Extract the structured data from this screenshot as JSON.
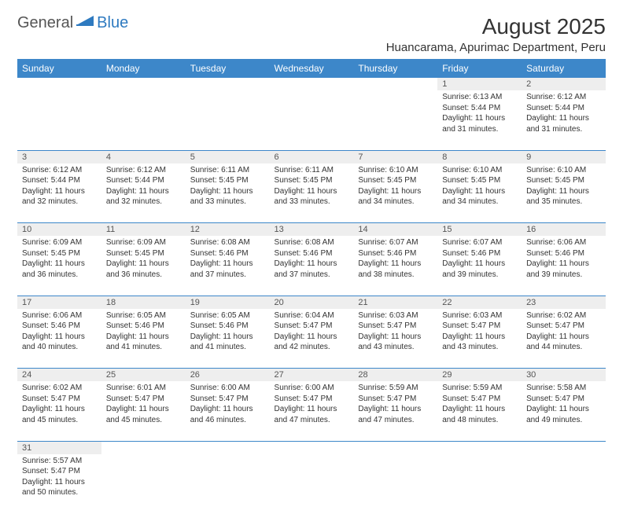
{
  "logo": {
    "word1": "General",
    "word2": "Blue"
  },
  "title": "August 2025",
  "location": "Huancarama, Apurimac Department, Peru",
  "colors": {
    "header_bg": "#3d87c9",
    "header_fg": "#ffffff",
    "daynum_bg": "#eeeeee",
    "row_border": "#3d87c9",
    "logo_blue": "#2e7ac0",
    "text": "#333333"
  },
  "day_names": [
    "Sunday",
    "Monday",
    "Tuesday",
    "Wednesday",
    "Thursday",
    "Friday",
    "Saturday"
  ],
  "weeks": [
    [
      null,
      null,
      null,
      null,
      null,
      {
        "n": "1",
        "sr": "6:13 AM",
        "ss": "5:44 PM",
        "dl": "11 hours and 31 minutes."
      },
      {
        "n": "2",
        "sr": "6:12 AM",
        "ss": "5:44 PM",
        "dl": "11 hours and 31 minutes."
      }
    ],
    [
      {
        "n": "3",
        "sr": "6:12 AM",
        "ss": "5:44 PM",
        "dl": "11 hours and 32 minutes."
      },
      {
        "n": "4",
        "sr": "6:12 AM",
        "ss": "5:44 PM",
        "dl": "11 hours and 32 minutes."
      },
      {
        "n": "5",
        "sr": "6:11 AM",
        "ss": "5:45 PM",
        "dl": "11 hours and 33 minutes."
      },
      {
        "n": "6",
        "sr": "6:11 AM",
        "ss": "5:45 PM",
        "dl": "11 hours and 33 minutes."
      },
      {
        "n": "7",
        "sr": "6:10 AM",
        "ss": "5:45 PM",
        "dl": "11 hours and 34 minutes."
      },
      {
        "n": "8",
        "sr": "6:10 AM",
        "ss": "5:45 PM",
        "dl": "11 hours and 34 minutes."
      },
      {
        "n": "9",
        "sr": "6:10 AM",
        "ss": "5:45 PM",
        "dl": "11 hours and 35 minutes."
      }
    ],
    [
      {
        "n": "10",
        "sr": "6:09 AM",
        "ss": "5:45 PM",
        "dl": "11 hours and 36 minutes."
      },
      {
        "n": "11",
        "sr": "6:09 AM",
        "ss": "5:45 PM",
        "dl": "11 hours and 36 minutes."
      },
      {
        "n": "12",
        "sr": "6:08 AM",
        "ss": "5:46 PM",
        "dl": "11 hours and 37 minutes."
      },
      {
        "n": "13",
        "sr": "6:08 AM",
        "ss": "5:46 PM",
        "dl": "11 hours and 37 minutes."
      },
      {
        "n": "14",
        "sr": "6:07 AM",
        "ss": "5:46 PM",
        "dl": "11 hours and 38 minutes."
      },
      {
        "n": "15",
        "sr": "6:07 AM",
        "ss": "5:46 PM",
        "dl": "11 hours and 39 minutes."
      },
      {
        "n": "16",
        "sr": "6:06 AM",
        "ss": "5:46 PM",
        "dl": "11 hours and 39 minutes."
      }
    ],
    [
      {
        "n": "17",
        "sr": "6:06 AM",
        "ss": "5:46 PM",
        "dl": "11 hours and 40 minutes."
      },
      {
        "n": "18",
        "sr": "6:05 AM",
        "ss": "5:46 PM",
        "dl": "11 hours and 41 minutes."
      },
      {
        "n": "19",
        "sr": "6:05 AM",
        "ss": "5:46 PM",
        "dl": "11 hours and 41 minutes."
      },
      {
        "n": "20",
        "sr": "6:04 AM",
        "ss": "5:47 PM",
        "dl": "11 hours and 42 minutes."
      },
      {
        "n": "21",
        "sr": "6:03 AM",
        "ss": "5:47 PM",
        "dl": "11 hours and 43 minutes."
      },
      {
        "n": "22",
        "sr": "6:03 AM",
        "ss": "5:47 PM",
        "dl": "11 hours and 43 minutes."
      },
      {
        "n": "23",
        "sr": "6:02 AM",
        "ss": "5:47 PM",
        "dl": "11 hours and 44 minutes."
      }
    ],
    [
      {
        "n": "24",
        "sr": "6:02 AM",
        "ss": "5:47 PM",
        "dl": "11 hours and 45 minutes."
      },
      {
        "n": "25",
        "sr": "6:01 AM",
        "ss": "5:47 PM",
        "dl": "11 hours and 45 minutes."
      },
      {
        "n": "26",
        "sr": "6:00 AM",
        "ss": "5:47 PM",
        "dl": "11 hours and 46 minutes."
      },
      {
        "n": "27",
        "sr": "6:00 AM",
        "ss": "5:47 PM",
        "dl": "11 hours and 47 minutes."
      },
      {
        "n": "28",
        "sr": "5:59 AM",
        "ss": "5:47 PM",
        "dl": "11 hours and 47 minutes."
      },
      {
        "n": "29",
        "sr": "5:59 AM",
        "ss": "5:47 PM",
        "dl": "11 hours and 48 minutes."
      },
      {
        "n": "30",
        "sr": "5:58 AM",
        "ss": "5:47 PM",
        "dl": "11 hours and 49 minutes."
      }
    ],
    [
      {
        "n": "31",
        "sr": "5:57 AM",
        "ss": "5:47 PM",
        "dl": "11 hours and 50 minutes."
      },
      null,
      null,
      null,
      null,
      null,
      null
    ]
  ],
  "labels": {
    "sunrise": "Sunrise:",
    "sunset": "Sunset:",
    "daylight": "Daylight:"
  }
}
